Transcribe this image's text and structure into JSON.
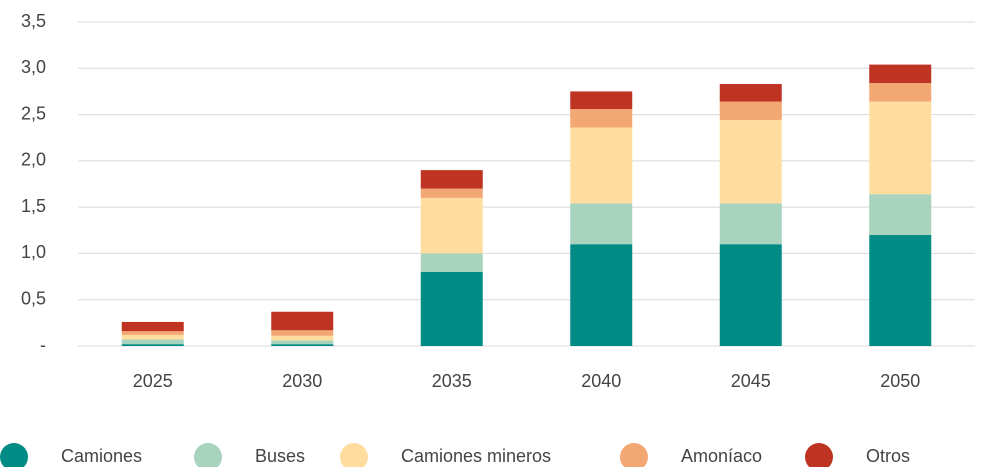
{
  "chart_data": {
    "type": "stacked_bar",
    "categories": [
      "2025",
      "2030",
      "2035",
      "2040",
      "2045",
      "2050"
    ],
    "series": [
      {
        "name": "Camiones",
        "color": "#008c84",
        "values": [
          0.02,
          0.02,
          0.8,
          1.1,
          1.1,
          1.2
        ]
      },
      {
        "name": "Buses",
        "color": "#a7d3bf",
        "values": [
          0.05,
          0.04,
          0.2,
          0.44,
          0.44,
          0.44
        ]
      },
      {
        "name": "Camiones mineros",
        "color": "#fedd9f",
        "values": [
          0.05,
          0.05,
          0.6,
          0.82,
          0.9,
          1.0
        ]
      },
      {
        "name": "Amoníaco",
        "color": "#f3a873",
        "values": [
          0.04,
          0.06,
          0.1,
          0.2,
          0.2,
          0.2
        ]
      },
      {
        "name": "Otros",
        "color": "#be3322",
        "values": [
          0.1,
          0.2,
          0.2,
          0.19,
          0.19,
          0.2
        ]
      }
    ],
    "ylim": [
      0,
      3.5
    ],
    "yticks": [
      {
        "value": 0,
        "label": "-"
      },
      {
        "value": 0.5,
        "label": "0,5"
      },
      {
        "value": 1,
        "label": "1,0"
      },
      {
        "value": 1.5,
        "label": "1,5"
      },
      {
        "value": 2,
        "label": "2,0"
      },
      {
        "value": 2.5,
        "label": "2,5"
      },
      {
        "value": 3,
        "label": "3,0"
      },
      {
        "value": 3.5,
        "label": "3,5"
      }
    ],
    "grid": true,
    "legend": "bottom"
  }
}
